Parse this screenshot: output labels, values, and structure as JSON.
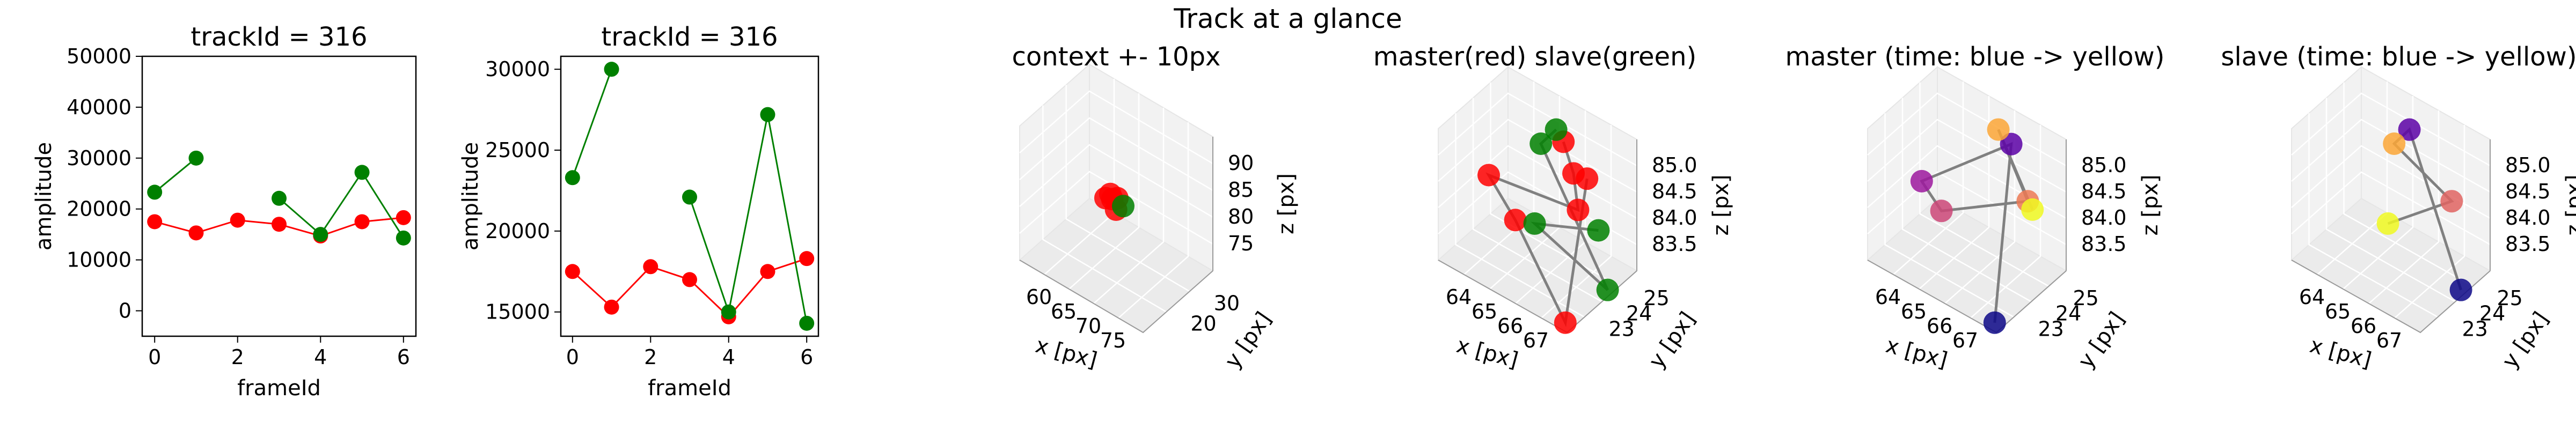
{
  "figure": {
    "suptitle": "Track at a glance"
  },
  "chart_data": [
    {
      "type": "line",
      "title": "trackId = 316",
      "xlabel": "frameId",
      "ylabel": "amplitude",
      "xlim": [
        -0.3,
        6.3
      ],
      "ylim": [
        -5000,
        50000
      ],
      "xticks": [
        "0",
        "2",
        "4",
        "6"
      ],
      "yticks": [
        "0",
        "10000",
        "20000",
        "30000",
        "40000",
        "50000"
      ],
      "grid": false,
      "series": [
        {
          "color": "#ff0000",
          "x": [
            0,
            1,
            2,
            3,
            4,
            5,
            6
          ],
          "values": [
            17500,
            15300,
            17800,
            17000,
            14700,
            17500,
            18300
          ]
        },
        {
          "color": "#008000",
          "segments": [
            {
              "x": [
                0,
                1
              ],
              "values": [
                23300,
                30000
              ]
            },
            {
              "x": [
                3,
                4,
                5,
                6
              ],
              "values": [
                22100,
                15000,
                27200,
                14300
              ]
            }
          ]
        }
      ]
    },
    {
      "type": "line",
      "title": "trackId = 316",
      "xlabel": "frameId",
      "ylabel": "amplitude",
      "xlim": [
        -0.3,
        6.3
      ],
      "ylim": [
        13500,
        30800
      ],
      "xticks": [
        "0",
        "2",
        "4",
        "6"
      ],
      "yticks": [
        "15000",
        "20000",
        "25000",
        "30000"
      ],
      "grid": false,
      "series": [
        {
          "color": "#ff0000",
          "x": [
            0,
            1,
            2,
            3,
            4,
            5,
            6
          ],
          "values": [
            17500,
            15300,
            17800,
            17000,
            14700,
            17500,
            18300
          ]
        },
        {
          "color": "#008000",
          "segments": [
            {
              "x": [
                0,
                1
              ],
              "values": [
                23300,
                30000
              ]
            },
            {
              "x": [
                3,
                4,
                5,
                6
              ],
              "values": [
                22100,
                15000,
                27200,
                14300
              ]
            }
          ]
        }
      ]
    },
    {
      "type": "scatter",
      "title": "context +- 10px",
      "xlabel": "x [px]",
      "ylabel": "y [px]",
      "zlabel": "z [px]",
      "xlim": [
        55,
        77
      ],
      "ylim": [
        13,
        37
      ],
      "zlim": [
        73,
        95
      ],
      "xticks": [
        "60",
        "65",
        "70",
        "75"
      ],
      "yticks": [
        "20",
        "30"
      ],
      "zticks": [
        "75",
        "80",
        "85",
        "90"
      ],
      "points": [
        {
          "x": 65.2,
          "y": 24.5,
          "z": 84.5,
          "color": "#ff0000"
        },
        {
          "x": 65.8,
          "y": 24.0,
          "z": 84.2,
          "color": "#ff0000"
        },
        {
          "x": 64.8,
          "y": 23.6,
          "z": 84.0,
          "color": "#ff0000"
        },
        {
          "x": 66.3,
          "y": 24.8,
          "z": 84.3,
          "color": "#ff0000"
        },
        {
          "x": 66.9,
          "y": 23.2,
          "z": 83.4,
          "color": "#ff0000"
        },
        {
          "x": 67.6,
          "y": 24.3,
          "z": 83.9,
          "color": "#008000"
        }
      ]
    },
    {
      "type": "scatter",
      "title": "master(red) slave(green)",
      "xlabel": "x [px]",
      "ylabel": "y [px]",
      "zlabel": "z [px]",
      "xlim": [
        63.5,
        67.5
      ],
      "ylim": [
        22.8,
        25.3
      ],
      "zlim": [
        83.3,
        85.1
      ],
      "xticks": [
        "64",
        "65",
        "66",
        "67"
      ],
      "yticks": [
        "23",
        "24",
        "25"
      ],
      "zticks": [
        "83.5",
        "84.0",
        "84.5",
        "85.0"
      ],
      "series": [
        {
          "name": "master",
          "color": "#ff0000",
          "points": [
            {
              "x": 66.0,
              "y": 24.4,
              "z": 85.0
            },
            {
              "x": 66.4,
              "y": 24.3,
              "z": 84.7
            },
            {
              "x": 66.8,
              "y": 24.0,
              "z": 84.4
            },
            {
              "x": 64.2,
              "y": 23.8,
              "z": 84.3
            },
            {
              "x": 65.2,
              "y": 23.6,
              "z": 84.0
            },
            {
              "x": 67.1,
              "y": 23.2,
              "z": 83.2
            },
            {
              "x": 66.3,
              "y": 24.9,
              "z": 84.4
            }
          ]
        },
        {
          "name": "slave",
          "color": "#008000",
          "points": [
            {
              "x": 65.6,
              "y": 24.6,
              "z": 85.0
            },
            {
              "x": 65.3,
              "y": 24.4,
              "z": 84.8
            },
            {
              "x": 67.2,
              "y": 24.6,
              "z": 83.2
            },
            {
              "x": 65.8,
              "y": 23.6,
              "z": 84.1
            },
            {
              "x": 67.0,
              "y": 24.5,
              "z": 84.0
            }
          ]
        }
      ]
    },
    {
      "type": "scatter",
      "title": "master (time: blue -> yellow)",
      "xlabel": "x [px]",
      "ylabel": "y [px]",
      "zlabel": "z [px]",
      "xlim": [
        63.5,
        67.5
      ],
      "ylim": [
        22.8,
        25.3
      ],
      "zlim": [
        83.3,
        85.1
      ],
      "xticks": [
        "64",
        "65",
        "66",
        "67"
      ],
      "yticks": [
        "23",
        "24",
        "25"
      ],
      "zticks": [
        "83.5",
        "84.0",
        "84.5",
        "85.0"
      ],
      "points": [
        {
          "x": 67.1,
          "y": 23.2,
          "z": 83.2,
          "color": "#0d0887"
        },
        {
          "x": 66.4,
          "y": 24.6,
          "z": 85.0,
          "color": "#5c01a6"
        },
        {
          "x": 64.4,
          "y": 23.7,
          "z": 84.3,
          "color": "#9c179e"
        },
        {
          "x": 65.1,
          "y": 23.6,
          "z": 84.1,
          "color": "#cc4778"
        },
        {
          "x": 67.0,
          "y": 24.5,
          "z": 84.4,
          "color": "#ed7953"
        },
        {
          "x": 66.0,
          "y": 24.6,
          "z": 85.1,
          "color": "#fca636"
        },
        {
          "x": 66.8,
          "y": 24.9,
          "z": 84.1,
          "color": "#f0f921"
        }
      ]
    },
    {
      "type": "scatter",
      "title": "slave (time: blue -> yellow)",
      "xlabel": "x [px]",
      "ylabel": "y [px]",
      "zlabel": "z [px]",
      "xlim": [
        63.5,
        67.5
      ],
      "ylim": [
        22.8,
        25.3
      ],
      "zlim": [
        83.3,
        85.1
      ],
      "xticks": [
        "64",
        "65",
        "66",
        "67"
      ],
      "yticks": [
        "23",
        "24",
        "25"
      ],
      "zticks": [
        "83.5",
        "84.0",
        "84.5",
        "85.0"
      ],
      "points": [
        {
          "x": 67.2,
          "y": 24.6,
          "z": 83.2,
          "color": "#0d0887"
        },
        {
          "x": 65.6,
          "y": 24.6,
          "z": 85.0,
          "color": "#5c01a6"
        },
        {
          "x": 65.3,
          "y": 24.4,
          "z": 84.8,
          "color": "#fca636"
        },
        {
          "x": 67.0,
          "y": 24.5,
          "z": 84.4,
          "color": "#e16462"
        },
        {
          "x": 65.8,
          "y": 23.6,
          "z": 84.1,
          "color": "#f0f921"
        }
      ]
    }
  ]
}
